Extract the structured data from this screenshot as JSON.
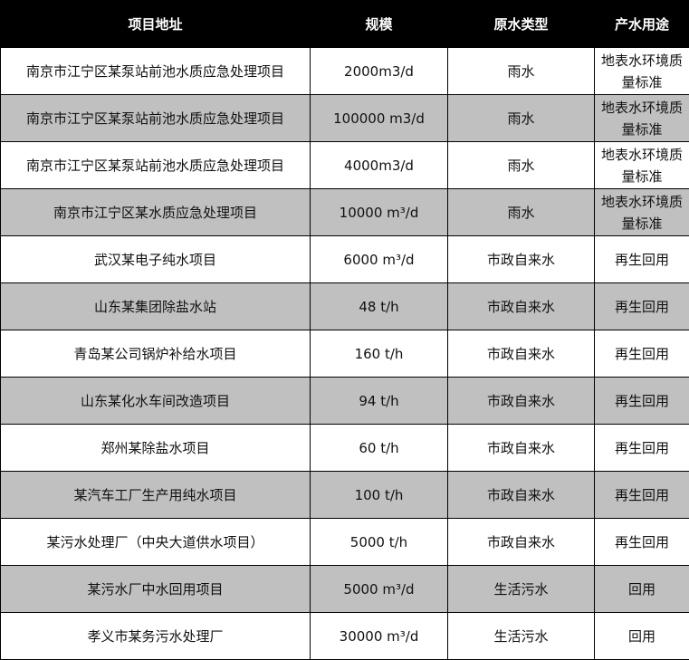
{
  "headers": [
    "项目地址",
    "规模",
    "原水类型",
    "产水用途"
  ],
  "colors": {
    "header_bg": "#000000",
    "header_text": "#ffffff",
    "alt_row_bg": "#c0c0c0"
  },
  "rows": [
    [
      "南京市江宁区某泵站前池水质应急处理项目",
      "2000m3/d",
      "雨水",
      "地表水环境质量标准"
    ],
    [
      "南京市江宁区某泵站前池水质应急处理项目",
      "100000 m3/d",
      "雨水",
      "地表水环境质量标准"
    ],
    [
      "南京市江宁区某泵站前池水质应急处理项目",
      "4000m3/d",
      "雨水",
      "地表水环境质量标准"
    ],
    [
      "南京市江宁区某水质应急处理项目",
      "10000 m³/d",
      "雨水",
      "地表水环境质量标准"
    ],
    [
      "武汉某电子纯水项目",
      "6000 m³/d",
      "市政自来水",
      "再生回用"
    ],
    [
      "山东某集团除盐水站",
      "48 t/h",
      "市政自来水",
      "再生回用"
    ],
    [
      "青岛某公司锅炉补给水项目",
      "160 t/h",
      "市政自来水",
      "再生回用"
    ],
    [
      "山东某化水车间改造项目",
      "94 t/h",
      "市政自来水",
      "再生回用"
    ],
    [
      "郑州某除盐水项目",
      "60 t/h",
      "市政自来水",
      "再生回用"
    ],
    [
      "某汽车工厂生产用纯水项目",
      "100 t/h",
      "市政自来水",
      "再生回用"
    ],
    [
      "某污水处理厂（中央大道供水项目）",
      "5000 t/h",
      "市政自来水",
      "再生回用"
    ],
    [
      "某污水厂中水回用项目",
      "5000 m³/d",
      "生活污水",
      "回用"
    ],
    [
      "孝义市某务污水处理厂",
      "30000 m³/d",
      "生活污水",
      "回用"
    ]
  ]
}
